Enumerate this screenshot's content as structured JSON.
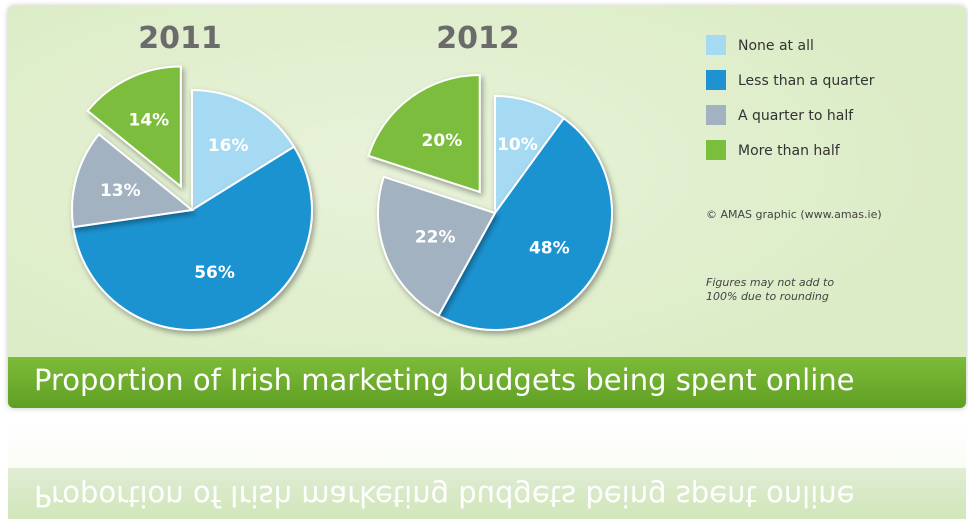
{
  "chart_data": [
    {
      "type": "pie",
      "title": "2011",
      "categories": [
        "None at all",
        "Less than a quarter",
        "A quarter to half",
        "More than half"
      ],
      "values": [
        16,
        56,
        13,
        14
      ],
      "labels": [
        "16%",
        "56%",
        "13%",
        "14%"
      ],
      "exploded": "More than half"
    },
    {
      "type": "pie",
      "title": "2012",
      "categories": [
        "None at all",
        "Less than a quarter",
        "A quarter to half",
        "More than half"
      ],
      "values": [
        10,
        48,
        22,
        20
      ],
      "labels": [
        "10%",
        "48%",
        "22%",
        "20%"
      ],
      "exploded": "More than half"
    }
  ],
  "legend": {
    "placement": "right",
    "items": [
      {
        "label": "None at all",
        "color": "#a6d9f2"
      },
      {
        "label": "Less than a quarter",
        "color": "#1f93d1"
      },
      {
        "label": "A quarter to half",
        "color": "#a3b2c0"
      },
      {
        "label": "More than half",
        "color": "#7bbd3c"
      }
    ]
  },
  "credit": "© AMAS graphic (www.amas.ie)",
  "note": "Figures may not add to 100% due to rounding",
  "banner_title": "Proportion of Irish marketing budgets being spent online"
}
